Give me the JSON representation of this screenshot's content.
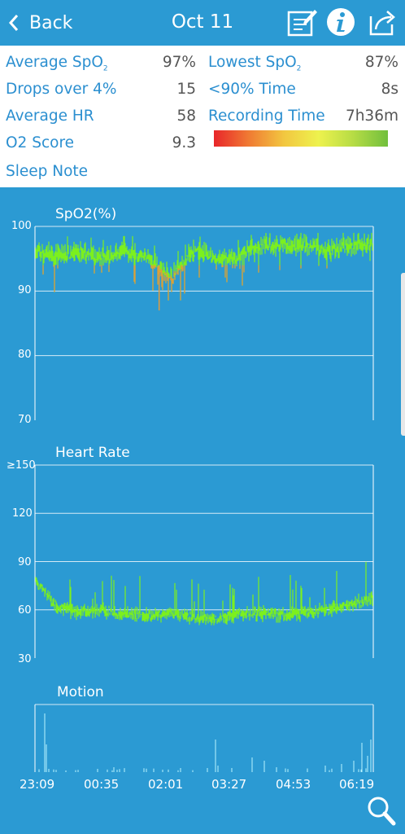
{
  "header": {
    "back_label": "Back",
    "title": "Oct 11"
  },
  "stats": {
    "average_spo2_label": "Average SpO",
    "average_spo2_sub": "2",
    "average_spo2_value": "97%",
    "lowest_spo2_label": "Lowest SpO",
    "lowest_spo2_sub": "2",
    "lowest_spo2_value": "87%",
    "drops_label": "Drops over 4%",
    "drops_value": "15",
    "below90_label": "<90% Time",
    "below90_value": "8s",
    "avg_hr_label": "Average HR",
    "avg_hr_value": "58",
    "recording_label": "Recording Time",
    "recording_value": "7h36m",
    "o2score_label": "O2 Score",
    "o2score_value": "9.3",
    "sleep_note_label": "Sleep Note"
  },
  "colors": {
    "background": "#2b9ad3",
    "line_green": "#7cf01f",
    "drop_orange": "#e59a3a",
    "motion": "#b8f4ff",
    "label_blue": "#2b8fd0"
  },
  "icons": [
    "chevron-left-icon",
    "edit-note-icon",
    "info-icon",
    "share-icon",
    "zoom-icon"
  ],
  "chart_data": [
    {
      "type": "line",
      "title": "SpO2(%)",
      "y_ticks": [
        "100",
        "90",
        "80",
        "70"
      ],
      "ylim": [
        70,
        100
      ],
      "x_ticks": [
        "23:09",
        "00:35",
        "02:01",
        "03:27",
        "04:53",
        "06:19"
      ],
      "x": [
        "23:09",
        "23:35",
        "00:00",
        "00:35",
        "01:00",
        "01:30",
        "02:01",
        "02:15",
        "02:45",
        "03:27",
        "04:00",
        "04:53",
        "05:20",
        "05:45",
        "06:19",
        "06:45"
      ],
      "values": [
        96,
        95,
        96,
        95,
        96,
        95,
        92,
        96,
        95,
        95,
        97,
        97,
        97,
        96,
        97,
        97
      ],
      "min": 87
    },
    {
      "type": "line",
      "title": "Heart Rate",
      "y_ticks": [
        "≥150",
        "120",
        "90",
        "60",
        "30"
      ],
      "ylim": [
        30,
        150
      ],
      "x_ticks": [
        "23:09",
        "00:35",
        "02:01",
        "03:27",
        "04:53",
        "06:19"
      ],
      "x": [
        "23:09",
        "23:35",
        "00:00",
        "00:35",
        "01:00",
        "01:30",
        "02:01",
        "02:30",
        "03:00",
        "03:27",
        "04:00",
        "04:53",
        "05:20",
        "05:45",
        "06:19",
        "06:45"
      ],
      "values": [
        78,
        62,
        58,
        60,
        57,
        56,
        58,
        55,
        54,
        57,
        58,
        57,
        58,
        60,
        63,
        67
      ]
    },
    {
      "type": "bar",
      "title": "Motion",
      "x_ticks": [
        "23:09",
        "00:35",
        "02:01",
        "03:27",
        "04:53",
        "06:19"
      ]
    }
  ]
}
